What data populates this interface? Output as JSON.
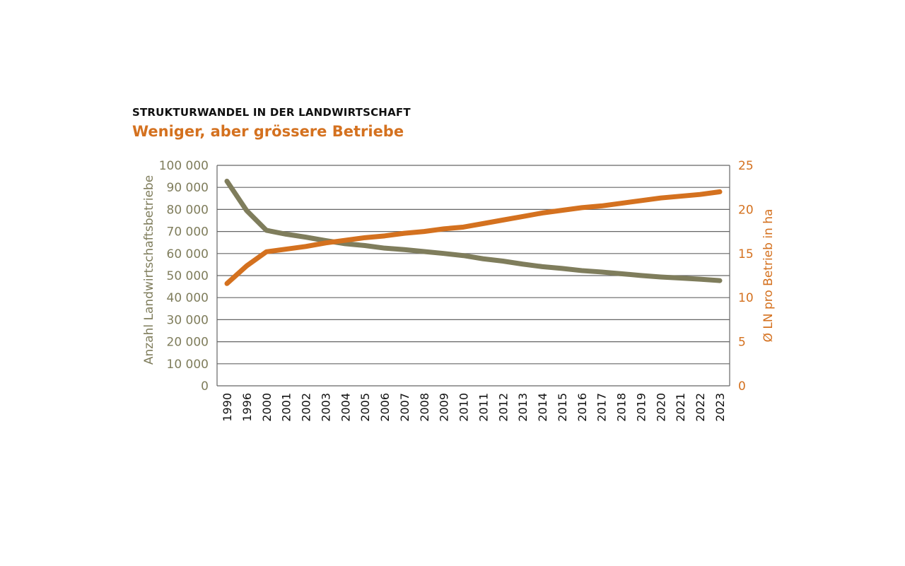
{
  "chart_data": {
    "type": "line",
    "title": "STRUKTURWANDEL IN DER LANDWIRTSCHAFT",
    "subtitle": "Weniger, aber grössere Betriebe",
    "categories": [
      "1990",
      "1996",
      "2000",
      "2001",
      "2002",
      "2003",
      "2004",
      "2005",
      "2006",
      "2007",
      "2008",
      "2009",
      "2010",
      "2011",
      "2012",
      "2013",
      "2014",
      "2015",
      "2016",
      "2017",
      "2018",
      "2019",
      "2020",
      "2021",
      "2022",
      "2023"
    ],
    "y_left": {
      "label": "Anzahl Landwirtschaftsbetriebe",
      "range": [
        0,
        100000
      ],
      "ticks": [
        "0",
        "10 000",
        "20 000",
        "30 000",
        "40 000",
        "50 000",
        "60 000",
        "70 000",
        "80 000",
        "90 000",
        "100 000"
      ],
      "color": "#7f7d5c"
    },
    "y_right": {
      "label": "Ø LN pro Betrieb in ha",
      "range": [
        0,
        25
      ],
      "ticks": [
        "0",
        "5",
        "10",
        "15",
        "20",
        "25"
      ],
      "color": "#d4711f"
    },
    "grid": true,
    "series": [
      {
        "axis": "left",
        "color": "#7f7d5c",
        "values": [
          92815,
          79479,
          70537,
          68784,
          67421,
          65866,
          64466,
          63627,
          62448,
          61764,
          60894,
          60034,
          59065,
          57617,
          56575,
          55207,
          54046,
          53232,
          52263,
          51620,
          50852,
          50038,
          49363,
          48864,
          48344,
          47719
        ]
      },
      {
        "axis": "right",
        "color": "#d4711f",
        "values": [
          11.6,
          13.6,
          15.2,
          15.5,
          15.8,
          16.2,
          16.5,
          16.8,
          17.0,
          17.3,
          17.5,
          17.8,
          18.0,
          18.4,
          18.8,
          19.2,
          19.6,
          19.9,
          20.2,
          20.4,
          20.7,
          21.0,
          21.3,
          21.5,
          21.7,
          22.0
        ]
      }
    ]
  }
}
